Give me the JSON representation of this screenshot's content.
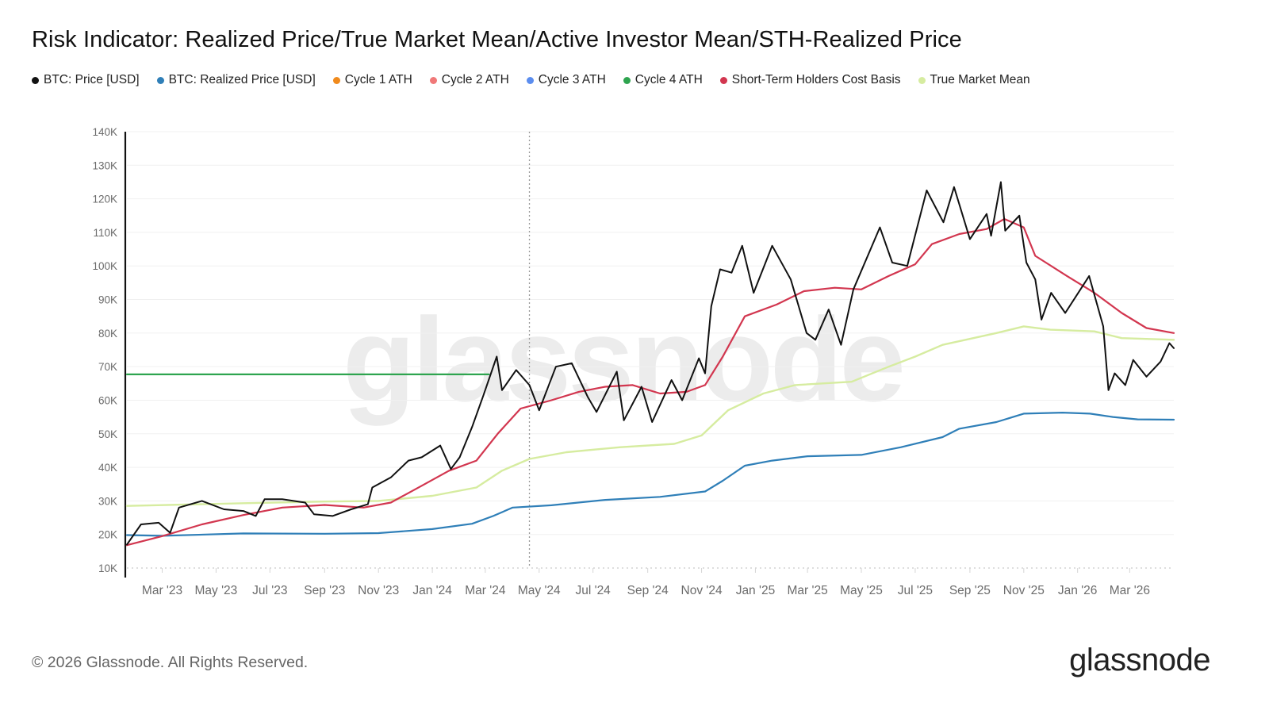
{
  "title": "Risk Indicator: Realized Price/True Market Mean/Active Investor Mean/STH-Realized Price",
  "legend": [
    {
      "label": "BTC: Price [USD]",
      "color": "#111111"
    },
    {
      "label": "BTC: Realized Price [USD]",
      "color": "#2f7fb8"
    },
    {
      "label": "Cycle 1 ATH",
      "color": "#f08a1c"
    },
    {
      "label": "Cycle 2 ATH",
      "color": "#f07878"
    },
    {
      "label": "Cycle 3 ATH",
      "color": "#5b8def"
    },
    {
      "label": "Cycle 4 ATH",
      "color": "#2ea44f"
    },
    {
      "label": "Short-Term Holders Cost Basis",
      "color": "#d2364f"
    },
    {
      "label": "True Market Mean",
      "color": "#d6eca0"
    }
  ],
  "watermark": "glassnode",
  "footer": {
    "copyright": "© 2026 Glassnode. All Rights Reserved.",
    "logo": "glassnode"
  },
  "chart_data": {
    "type": "line",
    "x_range": [
      "2023-01-20",
      "2026-04-20"
    ],
    "ylim": [
      10000,
      140000
    ],
    "y_ticks": [
      10000,
      20000,
      30000,
      40000,
      50000,
      60000,
      70000,
      80000,
      90000,
      100000,
      110000,
      120000,
      130000,
      140000
    ],
    "y_tick_labels": [
      "10K",
      "20K",
      "30K",
      "40K",
      "50K",
      "60K",
      "70K",
      "80K",
      "90K",
      "100K",
      "110K",
      "120K",
      "130K",
      "140K"
    ],
    "x_ticks": [
      "2023-03-01",
      "2023-05-01",
      "2023-07-01",
      "2023-09-01",
      "2023-11-01",
      "2024-01-01",
      "2024-03-01",
      "2024-05-01",
      "2024-07-01",
      "2024-09-01",
      "2024-11-01",
      "2025-01-01",
      "2025-03-01",
      "2025-05-01",
      "2025-07-01",
      "2025-09-01",
      "2025-11-01",
      "2026-01-01",
      "2026-03-01"
    ],
    "x_tick_labels": [
      "Mar '23",
      "May '23",
      "Jul '23",
      "Sep '23",
      "Nov '23",
      "Jan '24",
      "Mar '24",
      "May '24",
      "Jul '24",
      "Sep '24",
      "Nov '24",
      "Jan '25",
      "Mar '25",
      "May '25",
      "Jul '25",
      "Sep '25",
      "Nov '25",
      "Jan '26",
      "Mar '26"
    ],
    "grid": true,
    "vertical_marker": "2024-04-20",
    "series": [
      {
        "name": "BTC: Price [USD]",
        "color": "#111111",
        "width": 2,
        "points": [
          [
            "2023-01-20",
            17000
          ],
          [
            "2023-02-05",
            23000
          ],
          [
            "2023-02-25",
            23500
          ],
          [
            "2023-03-10",
            20500
          ],
          [
            "2023-03-20",
            28000
          ],
          [
            "2023-04-15",
            30000
          ],
          [
            "2023-05-10",
            27500
          ],
          [
            "2023-06-01",
            27000
          ],
          [
            "2023-06-15",
            25500
          ],
          [
            "2023-06-25",
            30500
          ],
          [
            "2023-07-15",
            30500
          ],
          [
            "2023-08-10",
            29500
          ],
          [
            "2023-08-20",
            26000
          ],
          [
            "2023-09-10",
            25500
          ],
          [
            "2023-10-01",
            27500
          ],
          [
            "2023-10-20",
            29000
          ],
          [
            "2023-10-25",
            34000
          ],
          [
            "2023-11-15",
            37000
          ],
          [
            "2023-12-05",
            42000
          ],
          [
            "2023-12-20",
            43000
          ],
          [
            "2024-01-10",
            46500
          ],
          [
            "2024-01-22",
            39500
          ],
          [
            "2024-02-01",
            43000
          ],
          [
            "2024-02-15",
            52000
          ],
          [
            "2024-02-28",
            61500
          ],
          [
            "2024-03-14",
            73000
          ],
          [
            "2024-03-20",
            63000
          ],
          [
            "2024-04-05",
            69000
          ],
          [
            "2024-04-20",
            64500
          ],
          [
            "2024-05-01",
            57000
          ],
          [
            "2024-05-20",
            70000
          ],
          [
            "2024-06-07",
            71000
          ],
          [
            "2024-06-25",
            61000
          ],
          [
            "2024-07-05",
            56500
          ],
          [
            "2024-07-28",
            68500
          ],
          [
            "2024-08-05",
            54000
          ],
          [
            "2024-08-25",
            64000
          ],
          [
            "2024-09-06",
            53500
          ],
          [
            "2024-09-28",
            66000
          ],
          [
            "2024-10-10",
            60000
          ],
          [
            "2024-10-29",
            72500
          ],
          [
            "2024-11-05",
            68000
          ],
          [
            "2024-11-12",
            88000
          ],
          [
            "2024-11-22",
            99000
          ],
          [
            "2024-12-05",
            98000
          ],
          [
            "2024-12-17",
            106000
          ],
          [
            "2024-12-30",
            92000
          ],
          [
            "2025-01-20",
            106000
          ],
          [
            "2025-02-10",
            96000
          ],
          [
            "2025-02-28",
            80000
          ],
          [
            "2025-03-10",
            78000
          ],
          [
            "2025-03-25",
            87000
          ],
          [
            "2025-04-08",
            76500
          ],
          [
            "2025-04-22",
            93000
          ],
          [
            "2025-05-22",
            111500
          ],
          [
            "2025-06-05",
            101000
          ],
          [
            "2025-06-22",
            100000
          ],
          [
            "2025-07-14",
            122500
          ],
          [
            "2025-08-02",
            113000
          ],
          [
            "2025-08-14",
            123500
          ],
          [
            "2025-09-01",
            108000
          ],
          [
            "2025-09-20",
            115500
          ],
          [
            "2025-09-25",
            109000
          ],
          [
            "2025-10-06",
            125000
          ],
          [
            "2025-10-11",
            110500
          ],
          [
            "2025-10-27",
            115000
          ],
          [
            "2025-11-04",
            101000
          ],
          [
            "2025-11-14",
            96000
          ],
          [
            "2025-11-21",
            84000
          ],
          [
            "2025-12-02",
            92000
          ],
          [
            "2025-12-18",
            86000
          ],
          [
            "2026-01-14",
            97000
          ],
          [
            "2026-01-30",
            82000
          ],
          [
            "2026-02-05",
            63000
          ],
          [
            "2026-02-12",
            68000
          ],
          [
            "2026-02-24",
            64500
          ],
          [
            "2026-03-05",
            72000
          ],
          [
            "2026-03-20",
            67000
          ],
          [
            "2026-04-05",
            71500
          ],
          [
            "2026-04-15",
            77000
          ],
          [
            "2026-04-20",
            75500
          ]
        ]
      },
      {
        "name": "BTC: Realized Price [USD]",
        "color": "#2f7fb8",
        "width": 2.2,
        "points": [
          [
            "2023-01-20",
            19800
          ],
          [
            "2023-03-01",
            19600
          ],
          [
            "2023-06-01",
            20300
          ],
          [
            "2023-09-01",
            20200
          ],
          [
            "2023-11-01",
            20400
          ],
          [
            "2024-01-01",
            21600
          ],
          [
            "2024-02-15",
            23200
          ],
          [
            "2024-03-10",
            25500
          ],
          [
            "2024-04-01",
            28000
          ],
          [
            "2024-05-15",
            28700
          ],
          [
            "2024-07-15",
            30300
          ],
          [
            "2024-09-15",
            31200
          ],
          [
            "2024-11-05",
            32800
          ],
          [
            "2024-11-25",
            36000
          ],
          [
            "2024-12-20",
            40500
          ],
          [
            "2025-01-20",
            42000
          ],
          [
            "2025-03-01",
            43300
          ],
          [
            "2025-05-01",
            43700
          ],
          [
            "2025-06-15",
            46000
          ],
          [
            "2025-08-01",
            49000
          ],
          [
            "2025-08-20",
            51500
          ],
          [
            "2025-10-01",
            53500
          ],
          [
            "2025-11-01",
            56000
          ],
          [
            "2025-12-15",
            56300
          ],
          [
            "2026-01-15",
            56000
          ],
          [
            "2026-02-10",
            55000
          ],
          [
            "2026-03-10",
            54300
          ],
          [
            "2026-04-20",
            54200
          ]
        ]
      },
      {
        "name": "Short-Term Holders Cost Basis",
        "color": "#d2364f",
        "width": 2.2,
        "points": [
          [
            "2023-01-20",
            16800
          ],
          [
            "2023-03-01",
            19500
          ],
          [
            "2023-04-15",
            23000
          ],
          [
            "2023-06-01",
            25800
          ],
          [
            "2023-07-15",
            28000
          ],
          [
            "2023-09-01",
            28800
          ],
          [
            "2023-10-15",
            28000
          ],
          [
            "2023-11-15",
            29500
          ],
          [
            "2023-12-20",
            34500
          ],
          [
            "2024-01-20",
            39000
          ],
          [
            "2024-02-20",
            42000
          ],
          [
            "2024-03-15",
            50000
          ],
          [
            "2024-04-10",
            57500
          ],
          [
            "2024-05-15",
            60000
          ],
          [
            "2024-06-15",
            62500
          ],
          [
            "2024-07-15",
            64000
          ],
          [
            "2024-08-15",
            64500
          ],
          [
            "2024-09-15",
            62000
          ],
          [
            "2024-10-15",
            62500
          ],
          [
            "2024-11-05",
            64500
          ],
          [
            "2024-11-25",
            73000
          ],
          [
            "2024-12-20",
            85000
          ],
          [
            "2025-01-25",
            88500
          ],
          [
            "2025-02-25",
            92500
          ],
          [
            "2025-04-01",
            93500
          ],
          [
            "2025-05-01",
            93000
          ],
          [
            "2025-06-01",
            97000
          ],
          [
            "2025-07-01",
            100500
          ],
          [
            "2025-07-20",
            106500
          ],
          [
            "2025-08-20",
            109500
          ],
          [
            "2025-09-20",
            111000
          ],
          [
            "2025-10-10",
            114000
          ],
          [
            "2025-11-01",
            111500
          ],
          [
            "2025-11-14",
            103000
          ],
          [
            "2025-12-20",
            97000
          ],
          [
            "2026-01-20",
            92000
          ],
          [
            "2026-02-20",
            86000
          ],
          [
            "2026-03-20",
            81500
          ],
          [
            "2026-04-20",
            80000
          ]
        ]
      },
      {
        "name": "True Market Mean",
        "color": "#d6eca0",
        "width": 2.4,
        "points": [
          [
            "2023-01-20",
            28500
          ],
          [
            "2023-06-01",
            29300
          ],
          [
            "2023-09-01",
            29800
          ],
          [
            "2023-11-01",
            30000
          ],
          [
            "2024-01-01",
            31500
          ],
          [
            "2024-02-20",
            34000
          ],
          [
            "2024-03-20",
            39000
          ],
          [
            "2024-04-20",
            42500
          ],
          [
            "2024-06-01",
            44500
          ],
          [
            "2024-08-01",
            46000
          ],
          [
            "2024-10-01",
            47000
          ],
          [
            "2024-11-01",
            49500
          ],
          [
            "2024-12-01",
            57000
          ],
          [
            "2025-01-10",
            62000
          ],
          [
            "2025-02-15",
            64500
          ],
          [
            "2025-04-20",
            65500
          ],
          [
            "2025-06-01",
            70000
          ],
          [
            "2025-07-01",
            73000
          ],
          [
            "2025-08-01",
            76500
          ],
          [
            "2025-10-01",
            80000
          ],
          [
            "2025-11-01",
            82000
          ],
          [
            "2025-12-01",
            81000
          ],
          [
            "2026-01-20",
            80500
          ],
          [
            "2026-02-20",
            78500
          ],
          [
            "2026-04-20",
            78000
          ]
        ]
      },
      {
        "name": "Cycle 4 ATH",
        "color": "#2ea44f",
        "width": 2.2,
        "points": [
          [
            "2023-01-20",
            67700
          ],
          [
            "2024-03-05",
            67700
          ]
        ]
      }
    ]
  }
}
